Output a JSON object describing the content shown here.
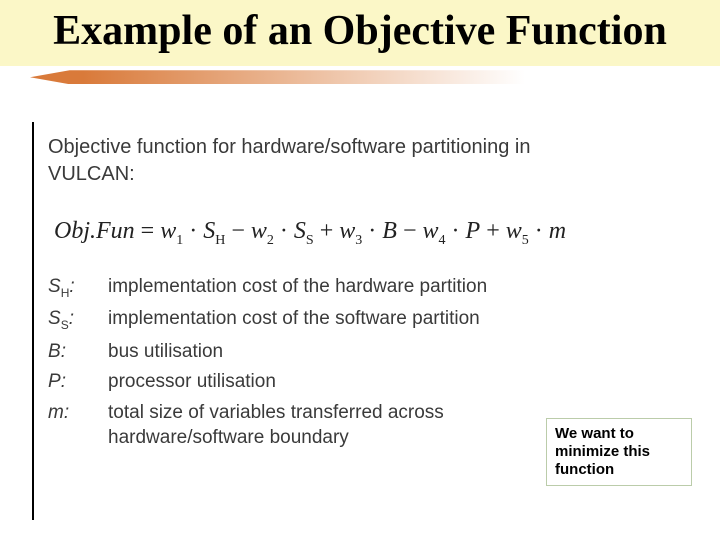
{
  "colors": {
    "title_bg": "#fbf7c7",
    "title_fg": "#000000",
    "divider_gradient_start": "#d97a3a",
    "divider_gradient_end": "#ffffff",
    "body_text": "#3a3a3a",
    "callout_border": "#bbcc99"
  },
  "title": "Example of an Objective Function",
  "intro_line1": "Objective function for hardware/software partitioning in",
  "intro_line2": "VULCAN:",
  "formula": {
    "lhs": "Obj.Fun",
    "terms": [
      {
        "sign": "=",
        "w": "w",
        "wi": "1",
        "var": "S",
        "vi": "H"
      },
      {
        "sign": "−",
        "w": "w",
        "wi": "2",
        "var": "S",
        "vi": "S"
      },
      {
        "sign": "+",
        "w": "w",
        "wi": "3",
        "var": "B",
        "vi": ""
      },
      {
        "sign": "−",
        "w": "w",
        "wi": "4",
        "var": "P",
        "vi": ""
      },
      {
        "sign": "+",
        "w": "w",
        "wi": "5",
        "var": "m",
        "vi": ""
      }
    ]
  },
  "definitions": [
    {
      "sym": "S",
      "sub": "H",
      "colon": ":",
      "text": "implementation cost of the hardware partition"
    },
    {
      "sym": "S",
      "sub": "S",
      "colon": ":",
      "text": "implementation cost of the software partition"
    },
    {
      "sym": "B",
      "sub": "",
      "colon": ":",
      "text": "bus utilisation"
    },
    {
      "sym": "P",
      "sub": "",
      "colon": ":",
      "text": "processor utilisation"
    },
    {
      "sym": "m",
      "sub": "",
      "colon": ":",
      "text": "total size of variables transferred across hardware/software boundary"
    }
  ],
  "callout": "We want to minimize this function"
}
